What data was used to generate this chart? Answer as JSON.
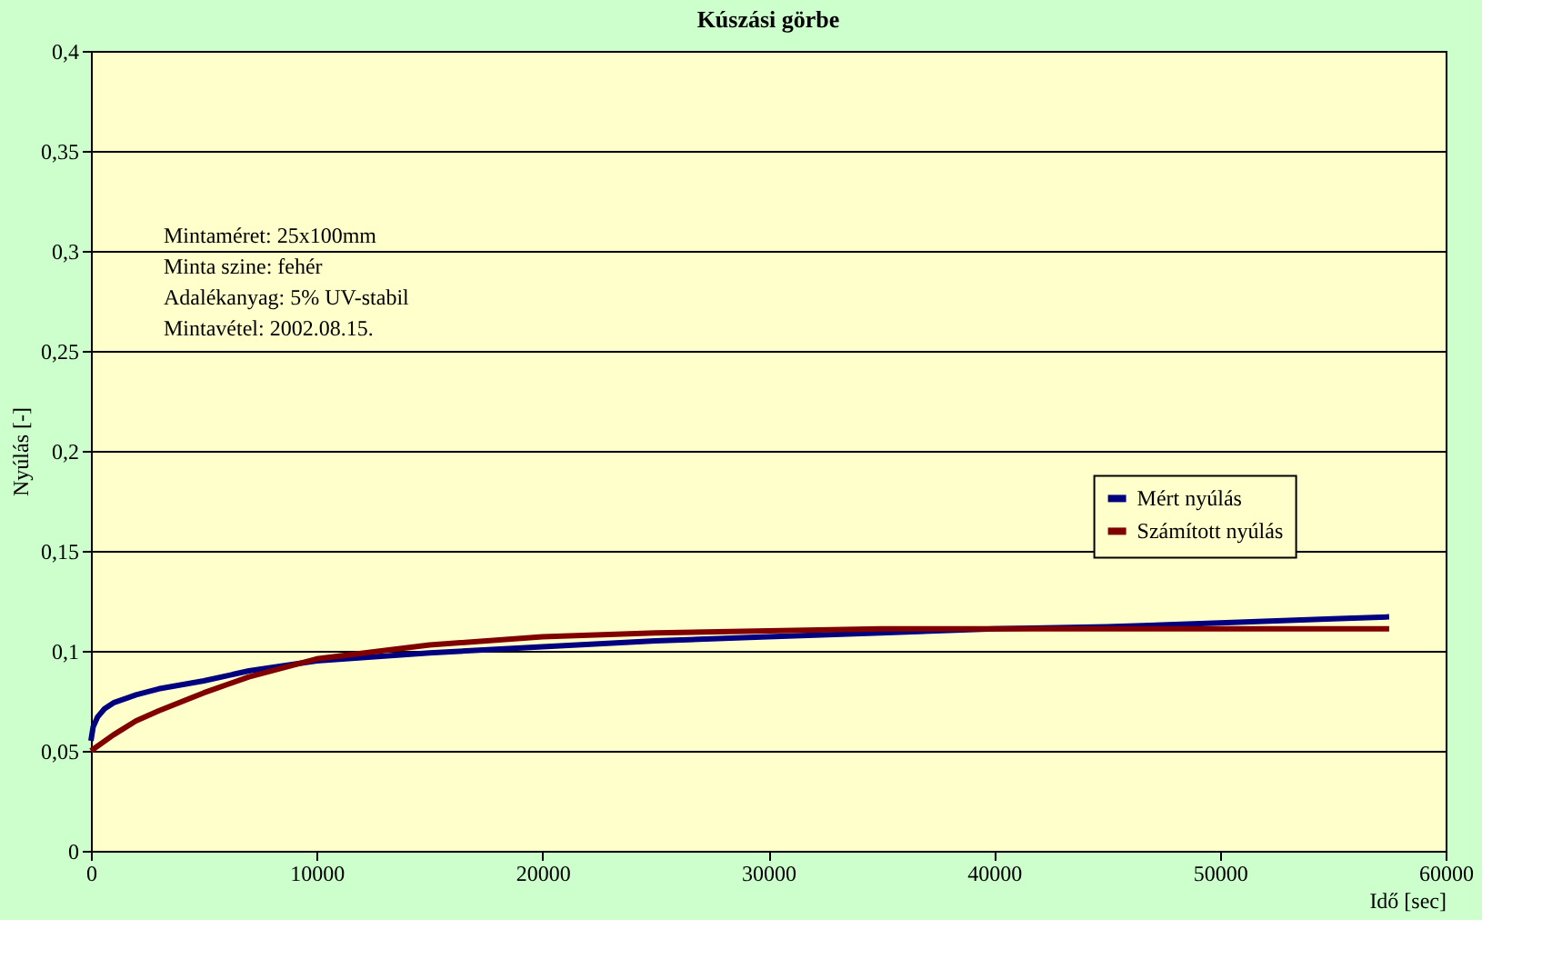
{
  "chart_data": {
    "type": "line",
    "title": "Kúszási görbe",
    "xlabel": "Idő [sec]",
    "ylabel": "Nyúlás [-]",
    "xlim": [
      0,
      60000
    ],
    "xticks": [
      0,
      10000,
      20000,
      30000,
      40000,
      50000,
      60000
    ],
    "ylim": [
      0,
      0.4
    ],
    "yticks": [
      0,
      {
        "value": 0.05,
        "label": "0,05"
      },
      {
        "value": 0.1,
        "label": "0,1"
      },
      {
        "value": 0.15,
        "label": "0,15"
      },
      {
        "value": 0.2,
        "label": "0,2"
      },
      {
        "value": 0.25,
        "label": "0,25"
      },
      {
        "value": 0.3,
        "label": "0,3"
      },
      {
        "value": 0.35,
        "label": "0,35"
      },
      {
        "value": 0.4,
        "label": "0,4"
      }
    ],
    "grid": "y",
    "legend": "right",
    "marker": "none",
    "line_style": "solid",
    "annotations": [
      "Mintaméret: 25x100mm",
      "Minta szine: fehér",
      "Adalékanyag: 5% UV-stabil",
      "Mintavétel: 2002.08.15."
    ],
    "series": [
      {
        "name": "Mért nyúlás",
        "color": "#000080",
        "x": [
          0,
          100,
          300,
          600,
          1000,
          2000,
          3000,
          5000,
          7000,
          10000,
          15000,
          20000,
          25000,
          30000,
          35000,
          40000,
          45000,
          50000,
          55000,
          57500
        ],
        "values": [
          0.055,
          0.062,
          0.067,
          0.071,
          0.074,
          0.078,
          0.081,
          0.085,
          0.09,
          0.095,
          0.099,
          0.102,
          0.105,
          0.107,
          0.109,
          0.111,
          0.112,
          0.114,
          0.116,
          0.117
        ]
      },
      {
        "name": "Számított nyúlás",
        "color": "#800000",
        "x": [
          0,
          1000,
          2000,
          3000,
          5000,
          7000,
          10000,
          15000,
          20000,
          25000,
          30000,
          35000,
          40000,
          45000,
          50000,
          55000,
          57500
        ],
        "values": [
          0.05,
          0.058,
          0.065,
          0.07,
          0.079,
          0.087,
          0.096,
          0.103,
          0.107,
          0.109,
          0.11,
          0.111,
          0.111,
          0.111,
          0.111,
          0.111,
          0.111
        ]
      }
    ]
  }
}
